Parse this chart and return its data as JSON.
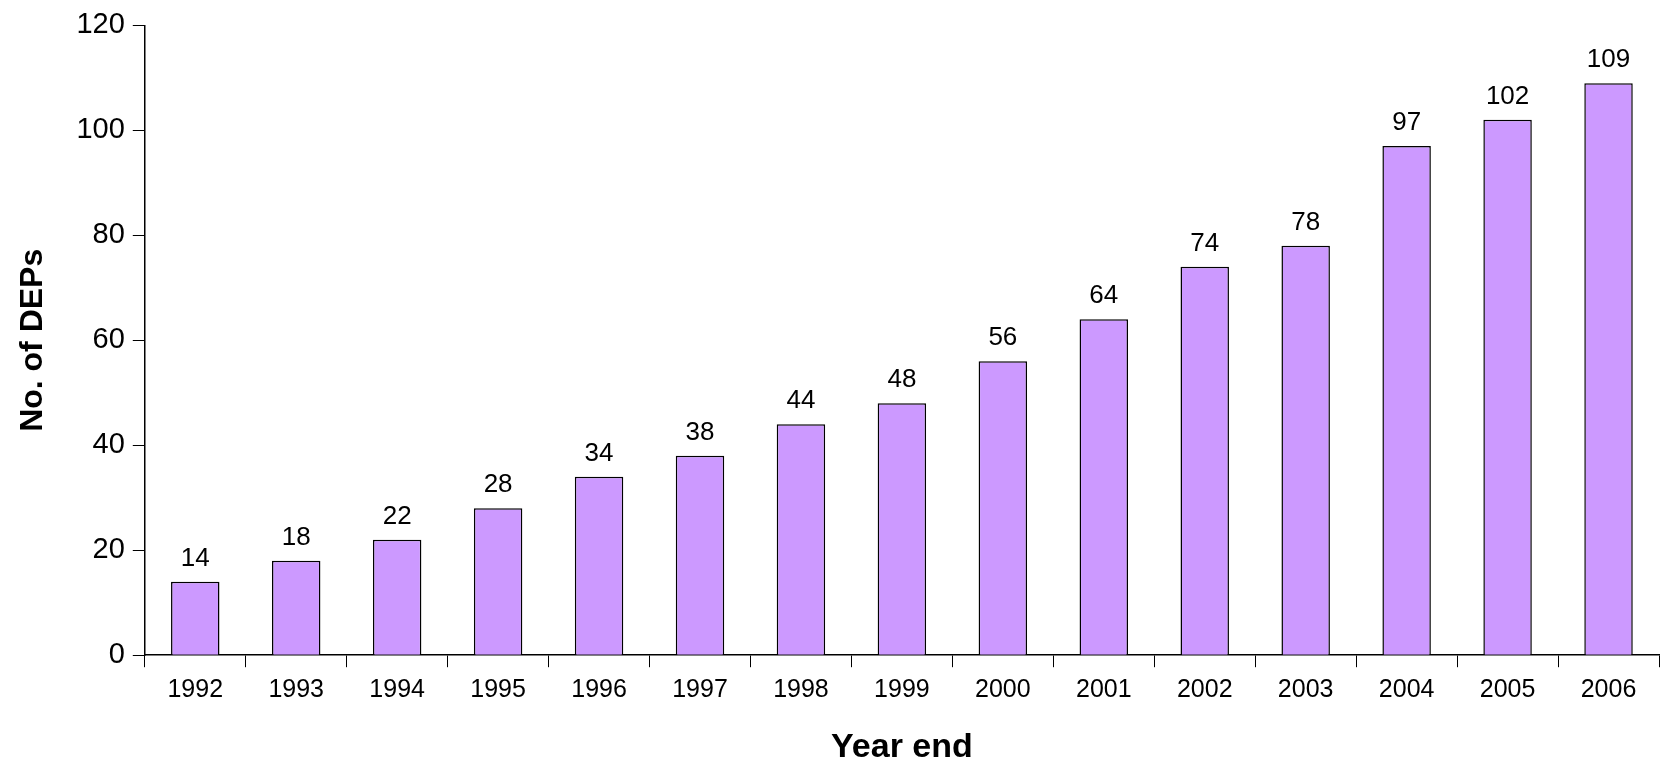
{
  "chart_data": {
    "type": "bar",
    "xlabel": "Year end",
    "ylabel": "No. of DEPs",
    "categories": [
      "1992",
      "1993",
      "1994",
      "1995",
      "1996",
      "1997",
      "1998",
      "1999",
      "2000",
      "2001",
      "2002",
      "2003",
      "2004",
      "2005",
      "2006"
    ],
    "values": [
      14,
      18,
      22,
      28,
      34,
      38,
      44,
      48,
      56,
      64,
      74,
      78,
      97,
      102,
      109
    ],
    "color": "#cc99ff",
    "ylim": [
      0,
      120
    ],
    "yticks": [
      0,
      20,
      40,
      60,
      80,
      100,
      120
    ],
    "grid": false,
    "legend": false,
    "data_labels": true
  }
}
